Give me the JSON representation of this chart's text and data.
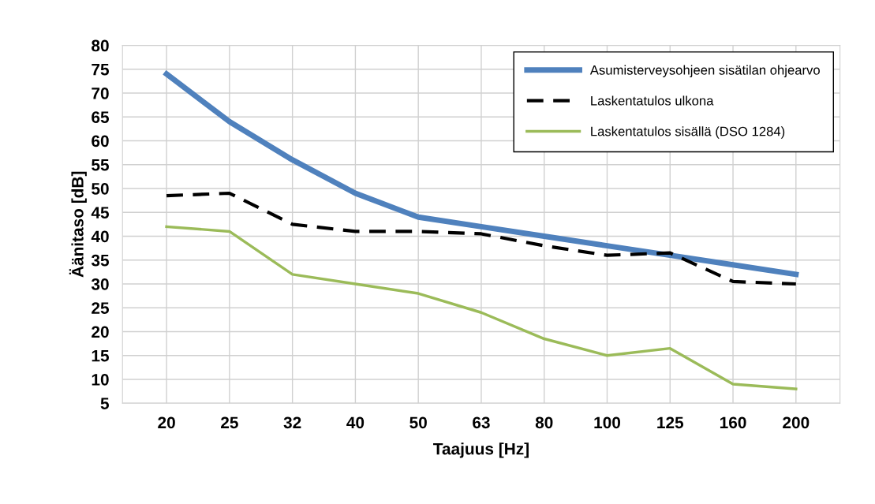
{
  "chart_data": {
    "type": "line",
    "xlabel": "Taajuus [Hz]",
    "ylabel": "Äänitaso [dB]",
    "categories": [
      "20",
      "25",
      "32",
      "40",
      "50",
      "63",
      "80",
      "100",
      "125",
      "160",
      "200"
    ],
    "series": [
      {
        "name": "Asumisterveysohjeen sisätilan ohjearvo",
        "color": "#4f81bd",
        "line_style": "solid",
        "values": [
          74,
          64,
          56,
          49,
          44,
          42,
          40,
          38,
          36,
          34,
          32
        ]
      },
      {
        "name": "Laskentatulos ulkona",
        "color": "#000000",
        "line_style": "dashed",
        "values": [
          48.5,
          49,
          42.5,
          41,
          41,
          40.5,
          38,
          36,
          36.5,
          30.5,
          30
        ]
      },
      {
        "name": "Laskentatulos sisällä (DSO 1284)",
        "color": "#9bbb59",
        "line_style": "solid",
        "values": [
          42,
          41,
          32,
          30,
          28,
          24,
          18.5,
          15,
          16.5,
          9,
          8
        ]
      }
    ],
    "ylim": [
      5,
      80
    ],
    "yticks": [
      5,
      10,
      15,
      20,
      25,
      30,
      35,
      40,
      45,
      50,
      55,
      60,
      65,
      70,
      75,
      80
    ],
    "grid": true,
    "legend": "top right",
    "marker": "none"
  }
}
